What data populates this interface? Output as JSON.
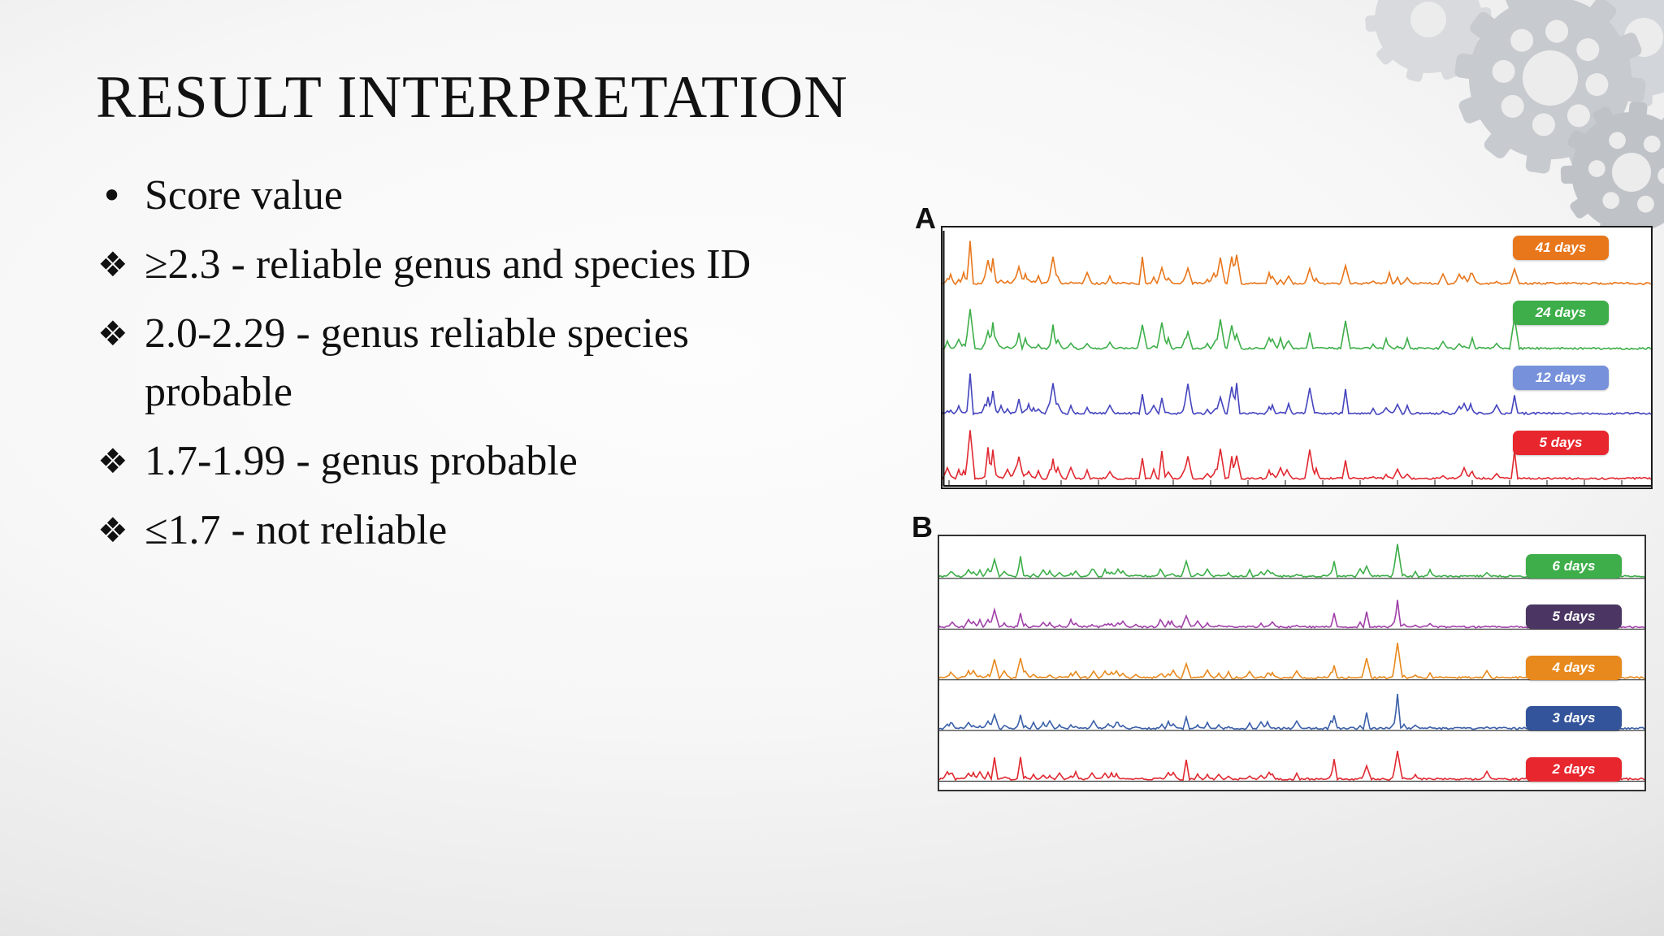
{
  "slide": {
    "title": "RESULT INTERPRETATION",
    "bullets": [
      {
        "marker": "•",
        "text": "Score value"
      },
      {
        "marker": "❖",
        "text": "≥2.3 - reliable genus and species ID"
      },
      {
        "marker": "❖",
        "text": "2.0-2.29 - genus reliable species probable"
      },
      {
        "marker": "❖",
        "text": "1.7-1.99 - genus probable"
      },
      {
        "marker": "❖",
        "text": "≤1.7 - not reliable"
      }
    ]
  },
  "chart_data": [
    {
      "type": "line",
      "panel": "A",
      "description": "Stacked mass spectra traces at different storage times",
      "legend_position": "right",
      "axes": "bottom axis with tick marks, unlabeled",
      "series": [
        {
          "name": "41 days",
          "color": "#E8761B",
          "chip_color": "#E8761B"
        },
        {
          "name": "24 days",
          "color": "#3DAE49",
          "chip_color": "#3DAE49"
        },
        {
          "name": "12 days",
          "color": "#4444BE",
          "chip_color": "#7792DB"
        },
        {
          "name": "5 days",
          "color": "#E02830",
          "chip_color": "#E8262D"
        }
      ]
    },
    {
      "type": "line",
      "panel": "B",
      "description": "Stacked mass spectra traces at different storage times",
      "legend_position": "right",
      "axes": "per-trace horizontal baselines, unlabeled",
      "series": [
        {
          "name": "6 days",
          "color": "#3DAE49",
          "chip_color": "#3DAE49"
        },
        {
          "name": "5 days",
          "color": "#A040A8",
          "chip_color": "#4B3663"
        },
        {
          "name": "4 days",
          "color": "#E8891E",
          "chip_color": "#E8891E"
        },
        {
          "name": "3 days",
          "color": "#3A5FA8",
          "chip_color": "#33549B"
        },
        {
          "name": "2 days",
          "color": "#E02830",
          "chip_color": "#E8262D"
        }
      ]
    }
  ]
}
